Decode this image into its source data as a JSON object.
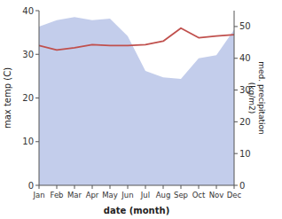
{
  "chart_data": {
    "type": "line",
    "xlabel": "date (month)",
    "ylabel": "max temp (C)",
    "y2label": "med. precipitation\n(kg/m2)",
    "categories": [
      "Jan",
      "Feb",
      "Mar",
      "Apr",
      "May",
      "Jun",
      "Jul",
      "Aug",
      "Sep",
      "Oct",
      "Nov",
      "Dec"
    ],
    "series": [
      {
        "type": "area",
        "axis": "y2",
        "color": "#b8c4e8",
        "values": [
          50.0,
          52.0,
          53.0,
          52.0,
          52.5,
          47.0,
          36.0,
          34.0,
          33.5,
          40.0,
          41.0,
          49.0
        ]
      },
      {
        "type": "line",
        "color": "#c0504d",
        "values": [
          32.0,
          31.0,
          31.5,
          32.2,
          32.0,
          32.0,
          32.2,
          33.0,
          36.0,
          33.8,
          34.2,
          34.5
        ]
      }
    ],
    "ylim": [
      0,
      40
    ],
    "yticks": [
      0,
      10,
      20,
      30,
      40
    ],
    "y2lim": [
      0,
      55
    ],
    "y2ticks": [
      0,
      10,
      20,
      30,
      40,
      50
    ],
    "grid": false
  }
}
